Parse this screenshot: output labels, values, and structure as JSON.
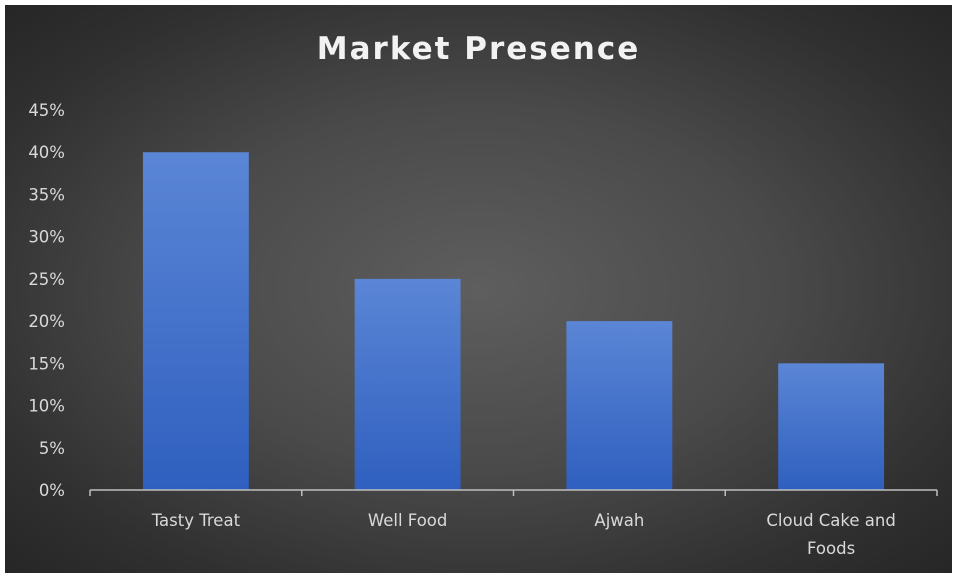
{
  "chart_data": {
    "type": "bar",
    "title": "Market Presence",
    "categories": [
      "Tasty Treat",
      "Well Food",
      "Ajwah",
      "Cloud Cake and Foods"
    ],
    "category_lines": [
      [
        "Tasty Treat"
      ],
      [
        "Well Food"
      ],
      [
        "Ajwah"
      ],
      [
        "Cloud Cake and",
        "Foods"
      ]
    ],
    "values": [
      0.4,
      0.25,
      0.2,
      0.15
    ],
    "yticks": [
      "0%",
      "5%",
      "10%",
      "15%",
      "20%",
      "25%",
      "30%",
      "35%",
      "40%",
      "45%"
    ],
    "ylim": [
      0,
      0.45
    ],
    "grid": false,
    "legend": "none",
    "xlabel": "",
    "ylabel": "",
    "colors": {
      "bar_top": "#5b86d6",
      "bar_bottom": "#2f5fbf",
      "axis": "#bfbfbf"
    }
  }
}
